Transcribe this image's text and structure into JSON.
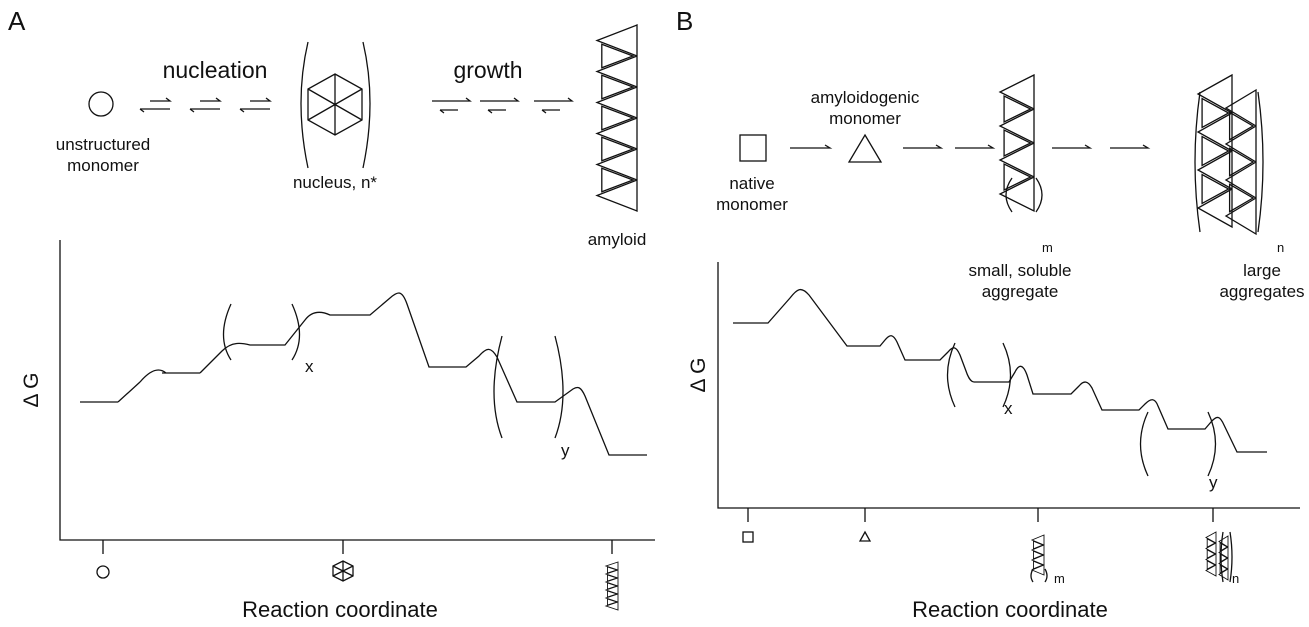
{
  "panels": [
    {
      "label": "A",
      "scheme": {
        "nucleation": "nucleation",
        "growth": "growth",
        "unstructured_monomer": [
          "unstructured",
          "monomer"
        ],
        "nucleus": "nucleus, n*",
        "amyloid": "amyloid"
      },
      "plot": {
        "y_axis": "Δ G",
        "x_axis": "Reaction coordinate",
        "bracket_labels": [
          "x",
          "y"
        ]
      }
    },
    {
      "label": "B",
      "scheme": {
        "native_monomer": [
          "native",
          "monomer"
        ],
        "amyloidogenic_monomer": [
          "amyloidogenic",
          "monomer"
        ],
        "small_aggregate": [
          "small, soluble",
          "aggregate"
        ],
        "small_subscript": "m",
        "large_aggregates": [
          "large",
          "aggregates"
        ],
        "large_subscript": "n"
      },
      "plot": {
        "y_axis": "Δ G",
        "x_axis": "Reaction coordinate",
        "bracket_labels": [
          "x",
          "y"
        ],
        "tick_subscripts": [
          "m",
          "n"
        ]
      }
    }
  ]
}
